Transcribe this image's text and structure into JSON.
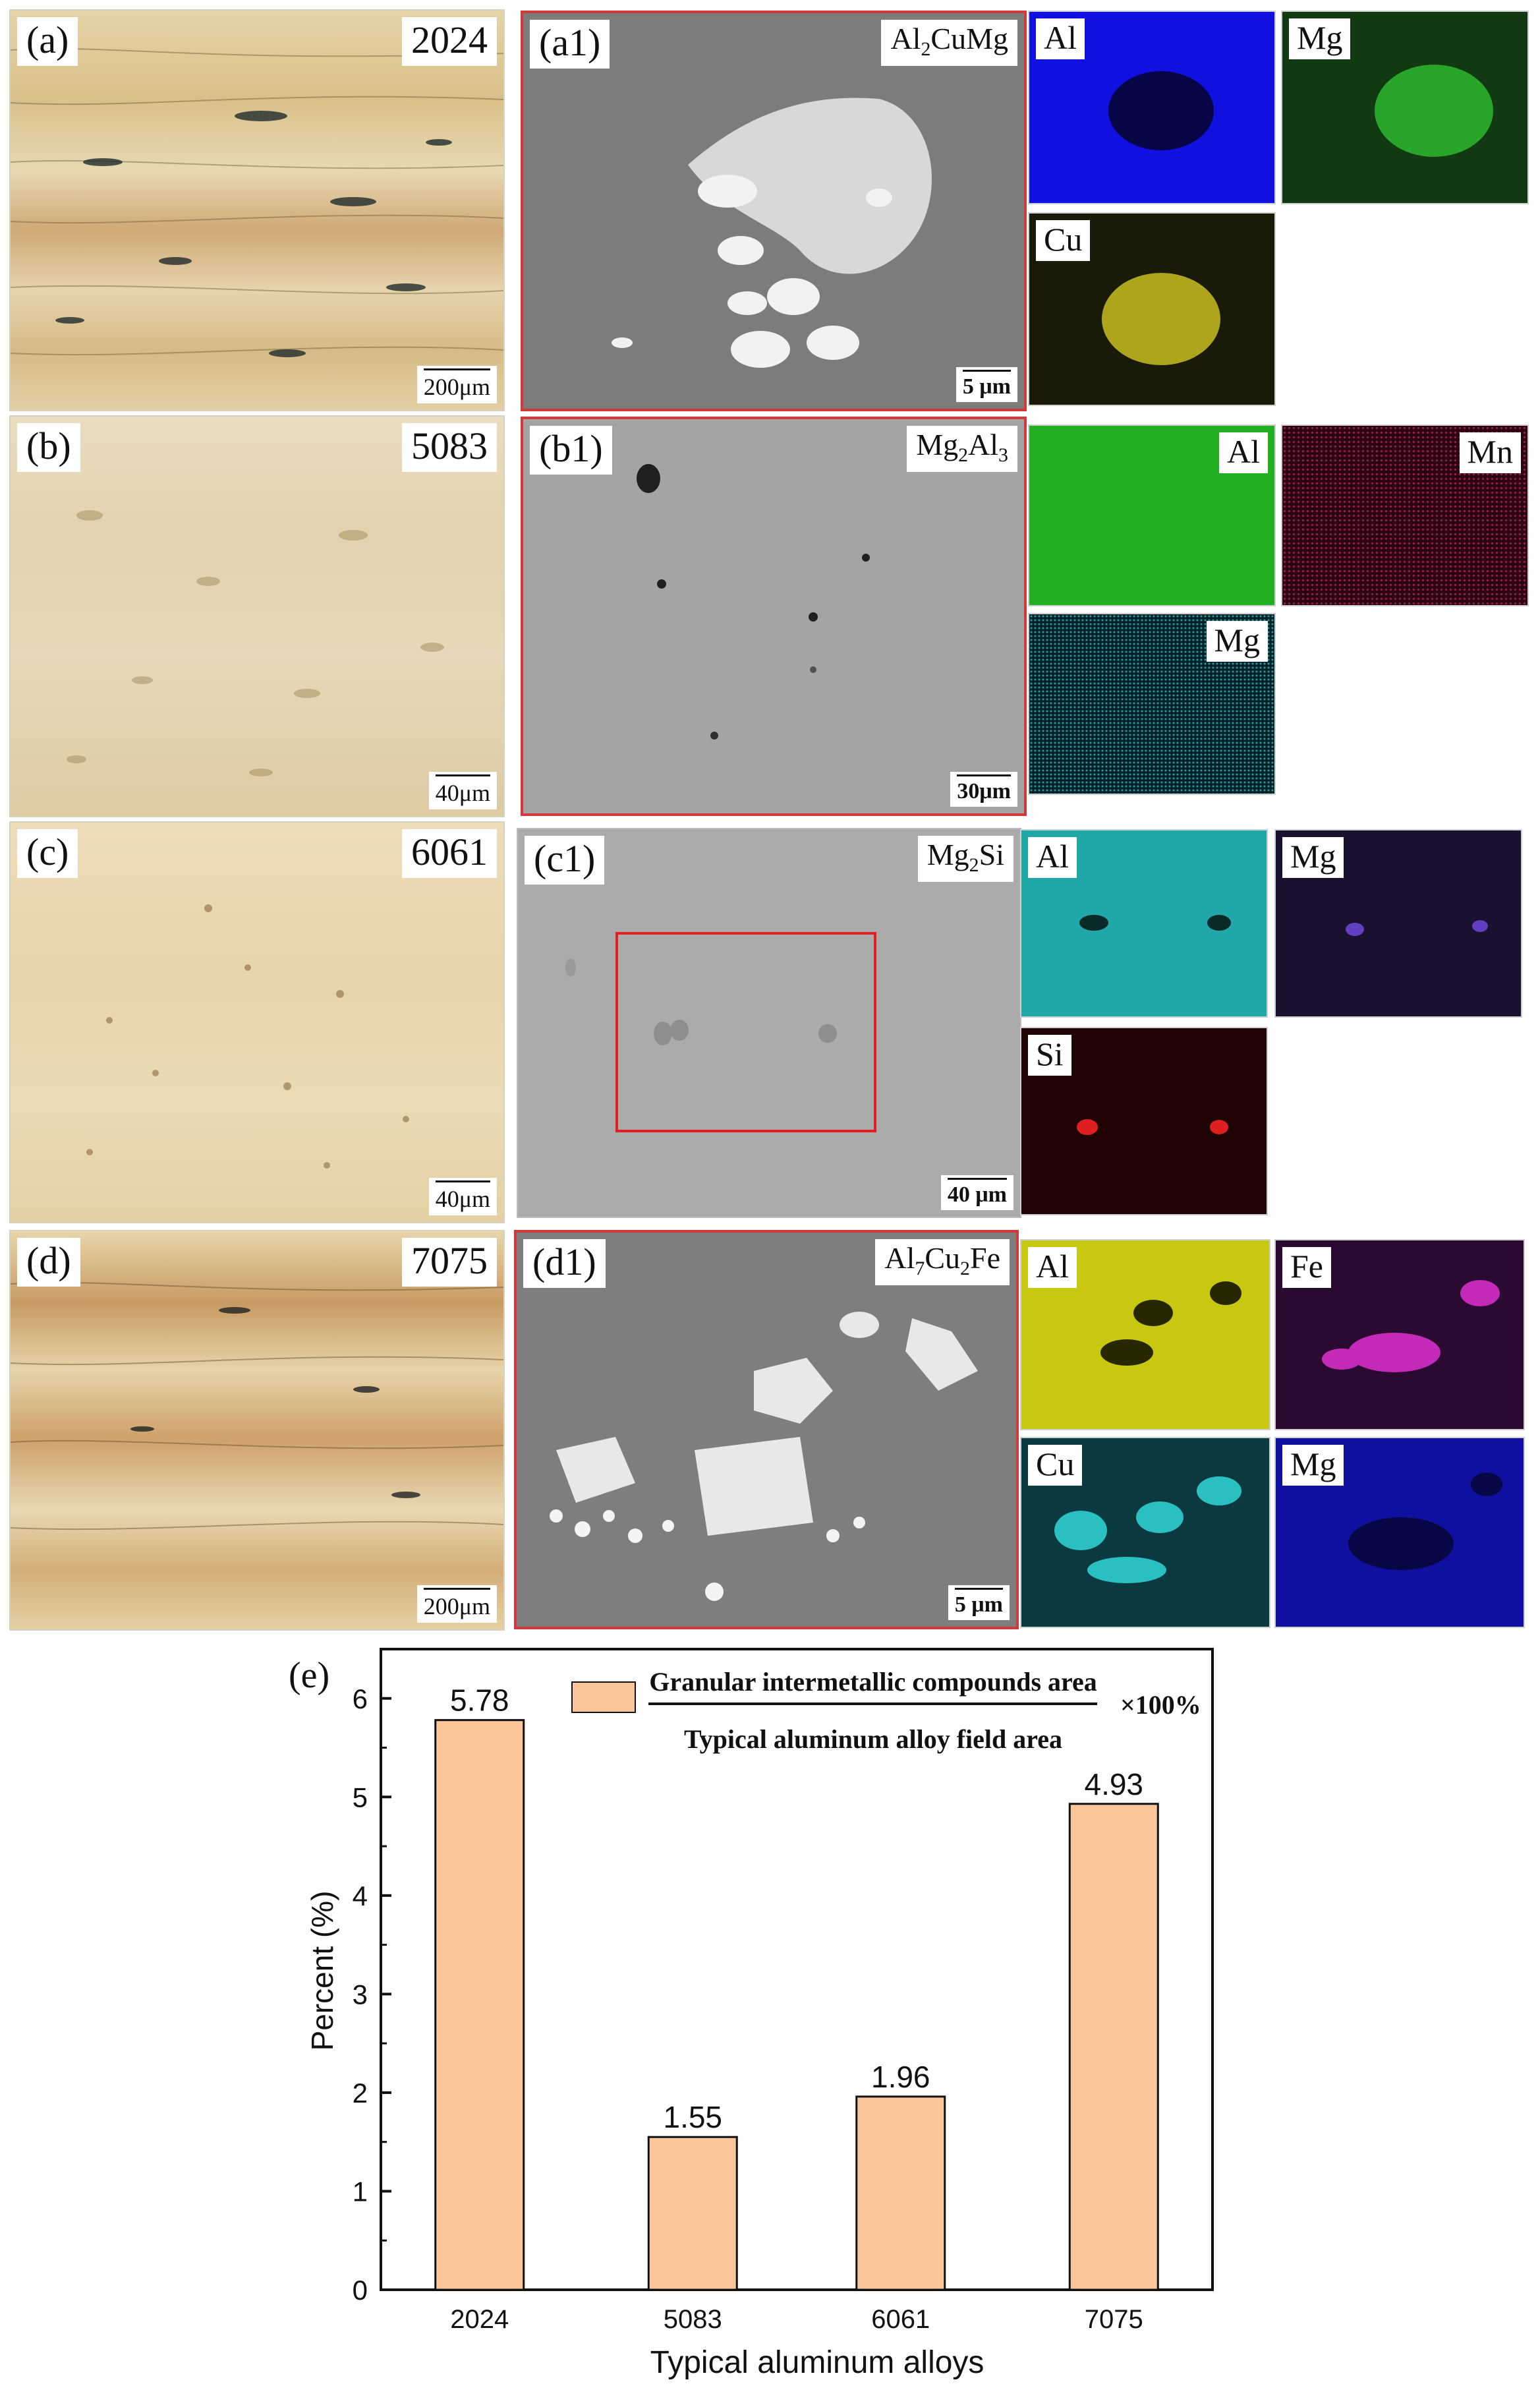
{
  "figure": {
    "rows": [
      {
        "label": "(a)",
        "alloy": "2024",
        "om_scale": "200μm",
        "sem_label": "(a1)",
        "phase": {
          "base": "Al",
          "s1": "2",
          "mid": "CuMg",
          "s2": "",
          "tail": ""
        },
        "sem_scale": "5 μm",
        "maps": [
          {
            "element": "Al",
            "color": "#1010e0"
          },
          {
            "element": "Mg",
            "color": "#1f7a1f"
          },
          {
            "element": "Cu",
            "color": "#b8b020"
          }
        ]
      },
      {
        "label": "(b)",
        "alloy": "5083",
        "om_scale": "40μm",
        "sem_label": "(b1)",
        "phase": {
          "base": "Mg",
          "s1": "2",
          "mid": "Al",
          "s2": "3",
          "tail": ""
        },
        "sem_scale": "30μm",
        "maps": [
          {
            "element": "Al",
            "color": "#22b022"
          },
          {
            "element": "Mn",
            "color": "#8a1a3a"
          },
          {
            "element": "Mg",
            "color": "#1a7a80"
          }
        ]
      },
      {
        "label": "(c)",
        "alloy": "6061",
        "om_scale": "40μm",
        "sem_label": "(c1)",
        "phase": {
          "base": "Mg",
          "s1": "2",
          "mid": "Si",
          "s2": "",
          "tail": ""
        },
        "sem_scale": "40 μm",
        "maps": [
          {
            "element": "Al",
            "color": "#20a8a8"
          },
          {
            "element": "Mg",
            "color": "#1a1030"
          },
          {
            "element": "Si",
            "color": "#200404"
          }
        ]
      },
      {
        "label": "(d)",
        "alloy": "7075",
        "om_scale": "200μm",
        "sem_label": "(d1)",
        "phase": {
          "base": "Al",
          "s1": "7",
          "mid": "Cu",
          "s2": "2",
          "tail": "Fe"
        },
        "sem_scale": "5 μm",
        "maps": [
          {
            "element": "Al",
            "color": "#c8c810"
          },
          {
            "element": "Fe",
            "color": "#2a0a30"
          },
          {
            "element": "Cu",
            "color": "#0a3a40"
          },
          {
            "element": "Mg",
            "color": "#10108a"
          }
        ]
      }
    ]
  },
  "chart_data": {
    "type": "bar",
    "panel_label": "(e)",
    "categories": [
      "2024",
      "5083",
      "6061",
      "7075"
    ],
    "values": [
      5.78,
      1.55,
      1.96,
      4.93
    ],
    "value_labels": [
      "5.78",
      "1.55",
      "1.96",
      "4.93"
    ],
    "xlabel": "Typical aluminum alloys",
    "ylabel": "Percent (%)",
    "ylim": [
      0,
      6.5
    ],
    "yticks": [
      0,
      1,
      2,
      3,
      4,
      5,
      6
    ],
    "bar_color": "#fbc69a",
    "legend": {
      "numerator": "Granular intermetallic compounds area",
      "denominator": "Typical aluminum alloy field area",
      "multiplier": "×100%",
      "placement": "top"
    }
  }
}
